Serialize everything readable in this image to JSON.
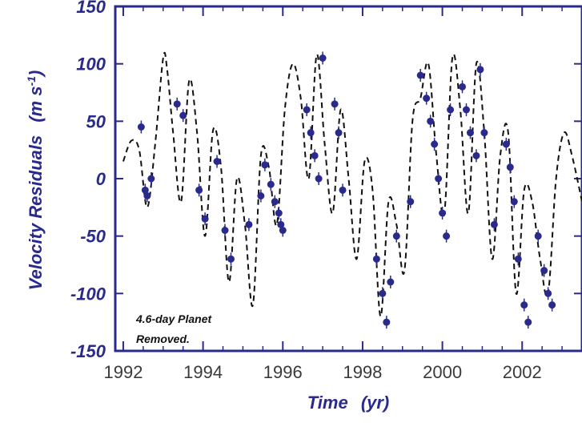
{
  "colors": {
    "axis": "#2a2a8c",
    "model": "#111111",
    "points": "#2a2a8c",
    "tick_text_x": "#3a3a3a"
  },
  "chart_data": {
    "type": "line",
    "xlabel": "Time",
    "xlabel_unit": "(yr)",
    "ylabel": "Velocity Residuals",
    "ylabel_unit": "(m s",
    "ylabel_sup": "-1",
    "ylabel_close": ")",
    "xlim": [
      1991.8,
      2003.5
    ],
    "ylim": [
      -150,
      150
    ],
    "x_ticks": [
      1992,
      1994,
      1996,
      1998,
      2000,
      2002
    ],
    "x_tick_labels": [
      "1992",
      "1994",
      "1996",
      "1998",
      "2000",
      "2002"
    ],
    "y_ticks": [
      -150,
      -100,
      -50,
      0,
      50,
      100,
      150
    ],
    "y_tick_labels": [
      "-150",
      "-100",
      "-50",
      "0",
      "50",
      "100",
      "150"
    ],
    "annotation": [
      "4.6-day Planet",
      "Removed."
    ],
    "series": [
      {
        "kind": "model",
        "x": [
          1992.0,
          1992.2,
          1992.4,
          1992.6,
          1992.8,
          1993.0,
          1993.1,
          1993.25,
          1993.45,
          1993.65,
          1993.85,
          1994.05,
          1994.25,
          1994.45,
          1994.65,
          1994.85,
          1995.05,
          1995.25,
          1995.45,
          1995.65,
          1995.85,
          1996.05,
          1996.25,
          1996.45,
          1996.65,
          1996.85,
          1997.05,
          1997.25,
          1997.45,
          1997.65,
          1997.85,
          1998.05,
          1998.25,
          1998.45,
          1998.65,
          1998.85,
          1999.05,
          1999.25,
          1999.45,
          1999.65,
          1999.85,
          2000.05,
          2000.25,
          2000.45,
          2000.65,
          2000.85,
          2001.05,
          2001.25,
          2001.45,
          2001.65,
          2001.85,
          2002.05,
          2002.25,
          2002.45,
          2002.65,
          2002.85,
          2003.05,
          2003.25,
          2003.5
        ],
        "y": [
          15,
          33,
          25,
          -25,
          30,
          105,
          95,
          40,
          -20,
          85,
          40,
          -50,
          42,
          10,
          -90,
          0,
          -40,
          -110,
          20,
          10,
          -40,
          60,
          100,
          70,
          0,
          108,
          30,
          -30,
          60,
          0,
          -70,
          15,
          -10,
          -120,
          -20,
          -40,
          -80,
          50,
          70,
          100,
          20,
          -30,
          105,
          60,
          -30,
          100,
          40,
          -70,
          20,
          40,
          -100,
          -10,
          -20,
          -70,
          -100,
          0,
          40,
          20,
          -20
        ]
      },
      {
        "kind": "observed",
        "x": [
          1992.45,
          1992.55,
          1992.6,
          1992.7,
          1993.35,
          1993.5,
          1993.9,
          1994.05,
          1994.35,
          1994.55,
          1994.7,
          1995.15,
          1995.45,
          1995.55,
          1995.7,
          1995.8,
          1995.9,
          1995.95,
          1996.0,
          1996.6,
          1996.7,
          1996.8,
          1996.9,
          1997.0,
          1997.3,
          1997.4,
          1997.5,
          1998.35,
          1998.5,
          1998.6,
          1998.7,
          1998.85,
          1999.2,
          1999.45,
          1999.6,
          1999.7,
          1999.8,
          1999.9,
          2000.0,
          2000.1,
          2000.2,
          2000.5,
          2000.6,
          2000.7,
          2000.85,
          2000.95,
          2001.05,
          2001.3,
          2001.6,
          2001.7,
          2001.8,
          2001.9,
          2002.05,
          2002.15,
          2002.4,
          2002.55,
          2002.65,
          2002.75
        ],
        "y": [
          45,
          -10,
          -15,
          0,
          65,
          55,
          -10,
          -35,
          15,
          -45,
          -70,
          -40,
          -15,
          12,
          -5,
          -20,
          -30,
          -40,
          -45,
          60,
          40,
          20,
          0,
          105,
          65,
          40,
          -10,
          -70,
          -100,
          -125,
          -90,
          -50,
          -20,
          90,
          70,
          50,
          30,
          0,
          -30,
          -50,
          60,
          80,
          60,
          40,
          20,
          95,
          40,
          -40,
          30,
          10,
          -20,
          -70,
          -110,
          -125,
          -50,
          -80,
          -100,
          -110
        ]
      }
    ]
  }
}
